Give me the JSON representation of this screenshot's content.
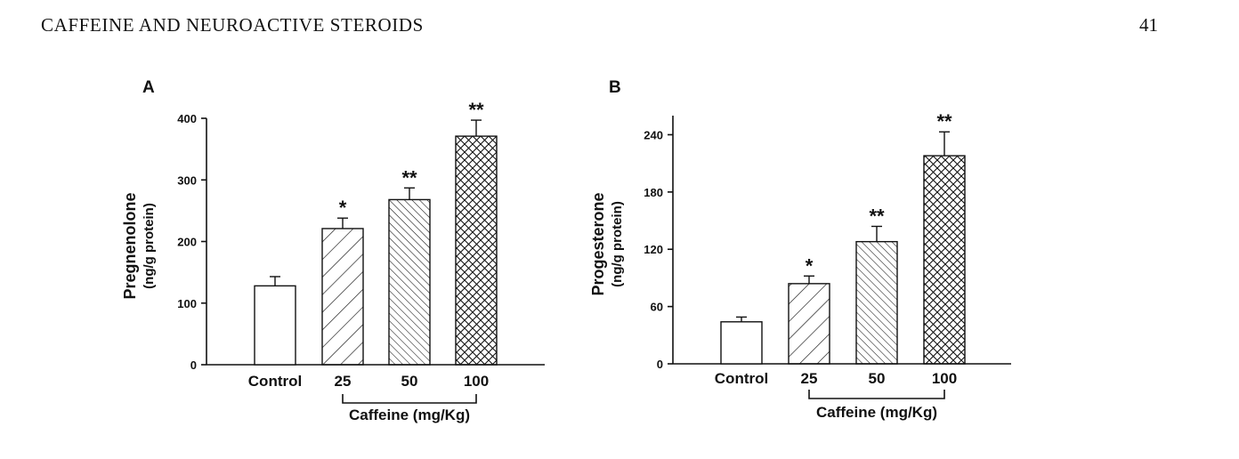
{
  "header": {
    "running_head": "CAFFEINE AND NEUROACTIVE STEROIDS",
    "page_number": "41"
  },
  "chart_data": [
    {
      "type": "bar",
      "panel": "A",
      "ylabel": "Pregnenolone",
      "ylabel_sub": "(ng/g protein)",
      "xlabel": "Caffeine (mg/Kg)",
      "categories": [
        "Control",
        "25",
        "50",
        "100"
      ],
      "values": [
        128,
        221,
        268,
        371
      ],
      "errors": [
        15,
        17,
        19,
        26
      ],
      "significance": [
        "",
        "*",
        "**",
        "**"
      ],
      "patterns": [
        "none",
        "diagonal",
        "dense-diagonal",
        "crosshatch"
      ],
      "ylim": [
        0,
        400
      ],
      "yticks": [
        0,
        100,
        200,
        300,
        400
      ],
      "grid": false
    },
    {
      "type": "bar",
      "panel": "B",
      "ylabel": "Progesterone",
      "ylabel_sub": "(ng/g protein)",
      "xlabel": "Caffeine (mg/Kg)",
      "categories": [
        "Control",
        "25",
        "50",
        "100"
      ],
      "values": [
        44,
        84,
        128,
        218
      ],
      "errors": [
        5,
        8,
        16,
        25
      ],
      "significance": [
        "",
        "*",
        "**",
        "**"
      ],
      "patterns": [
        "none",
        "diagonal",
        "dense-diagonal",
        "crosshatch"
      ],
      "ylim": [
        0,
        260
      ],
      "yticks": [
        0,
        60,
        120,
        180,
        240
      ],
      "grid": false
    }
  ]
}
